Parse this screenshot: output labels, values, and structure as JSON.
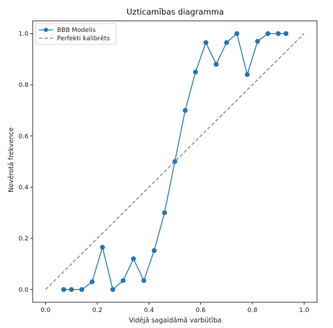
{
  "chart_data": {
    "type": "line",
    "title": "Uzticamības diagramma",
    "xlabel": "Vidējā sagaidāmā varbūtība",
    "ylabel": "Novērotā frekvence",
    "xlim": [
      -0.05,
      1.05
    ],
    "ylim": [
      -0.05,
      1.05
    ],
    "xticks": [
      0.0,
      0.2,
      0.4,
      0.6,
      0.8,
      1.0
    ],
    "yticks": [
      0.0,
      0.2,
      0.4,
      0.6,
      0.8,
      1.0
    ],
    "tick_labels": [
      "0.0",
      "0.2",
      "0.4",
      "0.6",
      "0.8",
      "1.0"
    ],
    "grid": false,
    "legend_position": "top-left",
    "series": [
      {
        "name": "BBB Modelis",
        "style": "line-with-markers",
        "color": "#1f77b4",
        "x": [
          0.07,
          0.1,
          0.14,
          0.18,
          0.22,
          0.26,
          0.3,
          0.34,
          0.38,
          0.42,
          0.46,
          0.5,
          0.54,
          0.58,
          0.62,
          0.66,
          0.7,
          0.74,
          0.78,
          0.82,
          0.86,
          0.9,
          0.93
        ],
        "y": [
          0.0,
          0.0,
          0.0,
          0.03,
          0.165,
          0.0,
          0.035,
          0.12,
          0.035,
          0.152,
          0.3,
          0.5,
          0.7,
          0.85,
          0.965,
          0.88,
          0.965,
          1.0,
          0.84,
          0.97,
          1.0,
          1.0,
          1.0
        ]
      },
      {
        "name": "Perfekti kalibrēts",
        "style": "dashed",
        "color": "#808080",
        "x": [
          0.0,
          1.0
        ],
        "y": [
          0.0,
          1.0
        ]
      }
    ]
  }
}
